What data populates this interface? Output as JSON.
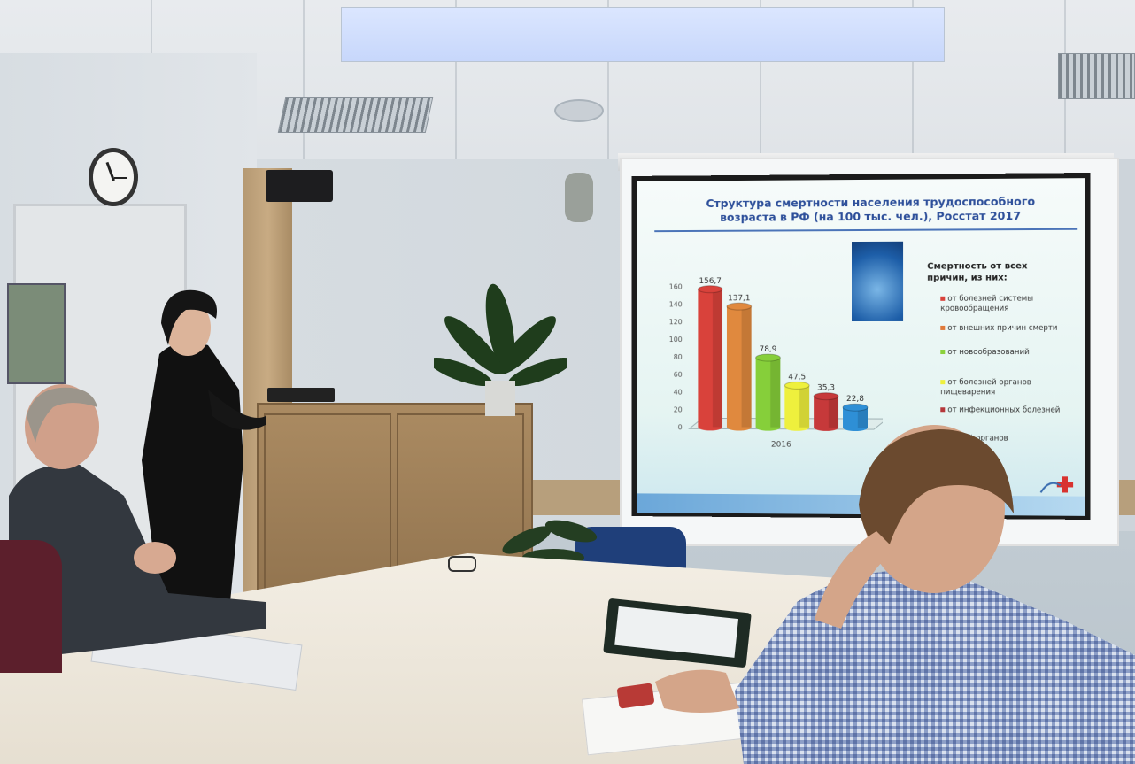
{
  "slide": {
    "title_line1": "Структура смертности населения трудоспособного",
    "title_line2": "возраста в РФ (на 100 тыс. чел.), Росстат 2017",
    "legend_title_line1": "Смертность от всех",
    "legend_title_line2": "причин, из них:",
    "legend_items": [
      {
        "label": "от болезней системы кровообращения",
        "color": "#d9423b"
      },
      {
        "label": "от внешних причин смерти",
        "color": "#e07a3a"
      },
      {
        "label": "от новообразований",
        "color": "#8bd13c"
      },
      {
        "label": "от болезней органов пищеварения",
        "color": "#eef03d"
      },
      {
        "label": "от инфекционных болезней",
        "color": "#b5373a"
      },
      {
        "label": "...зней органов",
        "color": "#2f8fd6"
      }
    ]
  },
  "chart_data": {
    "type": "bar",
    "categories": [
      "2016"
    ],
    "series": [
      {
        "values": [
          156.7
        ],
        "color": "#d9423b"
      },
      {
        "values": [
          137.1
        ],
        "color": "#e0893e"
      },
      {
        "values": [
          78.9
        ],
        "color": "#86cf3a"
      },
      {
        "values": [
          47.5
        ],
        "color": "#eef03d"
      },
      {
        "values": [
          35.3
        ],
        "color": "#c6393a"
      },
      {
        "values": [
          22.8
        ],
        "color": "#2e8fd6"
      }
    ],
    "value_labels": [
      "156,7",
      "137,1",
      "78,9",
      "47,5",
      "35,3",
      "22,8"
    ],
    "yticks": [
      "0",
      "20",
      "40",
      "60",
      "80",
      "100",
      "120",
      "140",
      "160"
    ],
    "ylim": [
      0,
      160
    ],
    "xlabel": "2016",
    "grid": false,
    "legend": "right"
  }
}
